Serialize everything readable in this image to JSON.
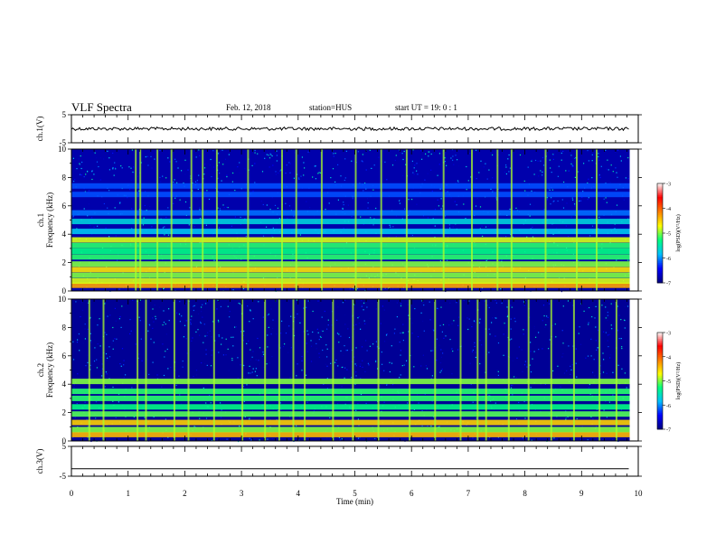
{
  "header": {
    "title": "VLF Spectra",
    "date": "Feb. 12, 2018",
    "station": "station=HUS",
    "start": "start  UT =   19: 0  : 1"
  },
  "colorbar": {
    "label": "log(PSD)(V²/Hz)",
    "ticks": [
      "-3",
      "-4",
      "-5",
      "-6",
      "-7"
    ],
    "range": [
      -7,
      -3
    ],
    "colors": [
      "#000080",
      "#0000ff",
      "#00c0ff",
      "#00ff80",
      "#ffff00",
      "#ff8000",
      "#ff0000",
      "#ffffff"
    ]
  },
  "chart_data": [
    {
      "type": "line",
      "name": "ch1-waveform",
      "ylabel": "ch.1(V)",
      "ylim": [
        -5,
        5
      ],
      "yticks": [
        "5",
        "-5"
      ],
      "x": [
        0,
        9.85
      ],
      "y": [
        0,
        0
      ],
      "note_level": 0
    },
    {
      "type": "heatmap",
      "name": "ch1-spectrogram",
      "ylabel": "ch.1\nFrequency (kHz)",
      "ylim": [
        0,
        10
      ],
      "yticks": [
        "0",
        "2",
        "4",
        "6",
        "8",
        "10"
      ],
      "xlim": [
        0,
        10
      ],
      "data_end_min": 9.85,
      "bands_khz": [
        {
          "f": 0.4,
          "level": -4.3
        },
        {
          "f": 0.7,
          "level": -4.8
        },
        {
          "f": 1.1,
          "level": -5.0
        },
        {
          "f": 1.5,
          "level": -4.6
        },
        {
          "f": 1.9,
          "level": -5.0
        },
        {
          "f": 2.4,
          "level": -5.2
        },
        {
          "f": 2.8,
          "level": -5.3
        },
        {
          "f": 3.2,
          "level": -5.2
        },
        {
          "f": 3.6,
          "level": -4.8
        },
        {
          "f": 4.2,
          "level": -5.8
        },
        {
          "f": 4.9,
          "level": -5.7
        },
        {
          "f": 5.5,
          "level": -6.1
        },
        {
          "f": 6.8,
          "level": -6.2
        },
        {
          "f": 7.4,
          "level": -6.2
        }
      ],
      "background_level": -6.8,
      "spikes_min": [
        1.12,
        1.2,
        1.5,
        1.75,
        2.1,
        2.3,
        2.55,
        3.1,
        3.7,
        3.95,
        4.4,
        5.0,
        5.45,
        5.9,
        6.55,
        7.05,
        7.5,
        7.75,
        8.35,
        8.9,
        9.25
      ]
    },
    {
      "type": "heatmap",
      "name": "ch2-spectrogram",
      "ylabel": "ch.2\nFrequency (kHz)",
      "ylim": [
        0,
        10
      ],
      "yticks": [
        "0",
        "2",
        "4",
        "6",
        "8",
        "10"
      ],
      "xlim": [
        0,
        10
      ],
      "data_end_min": 9.85,
      "bands_khz": [
        {
          "f": 0.45,
          "level": -4.4
        },
        {
          "f": 0.8,
          "level": -5.0
        },
        {
          "f": 1.3,
          "level": -4.5
        },
        {
          "f": 1.9,
          "level": -5.1
        },
        {
          "f": 2.4,
          "level": -5.3
        },
        {
          "f": 3.0,
          "level": -5.2
        },
        {
          "f": 3.5,
          "level": -5.2
        },
        {
          "f": 4.2,
          "level": -5.0
        }
      ],
      "background_level": -6.9,
      "spikes_min": [
        0.3,
        0.55,
        1.15,
        1.3,
        1.8,
        2.05,
        2.5,
        3.0,
        3.4,
        3.65,
        3.9,
        4.1,
        4.6,
        4.95,
        5.4,
        5.95,
        6.4,
        6.85,
        7.15,
        7.3,
        7.7,
        8.05,
        8.45,
        8.85,
        9.3,
        9.6
      ]
    },
    {
      "type": "line",
      "name": "ch3-waveform",
      "ylabel": "ch.3(V)",
      "ylim": [
        -5,
        5
      ],
      "yticks": [
        "5",
        "-5"
      ],
      "x": [
        0,
        9.85
      ],
      "y": [
        -2.5,
        -2.5
      ],
      "xlabel": "Time (min)",
      "xlim": [
        0,
        10
      ],
      "xticks": [
        "0",
        "1",
        "2",
        "3",
        "4",
        "5",
        "6",
        "7",
        "8",
        "9",
        "10"
      ]
    }
  ]
}
